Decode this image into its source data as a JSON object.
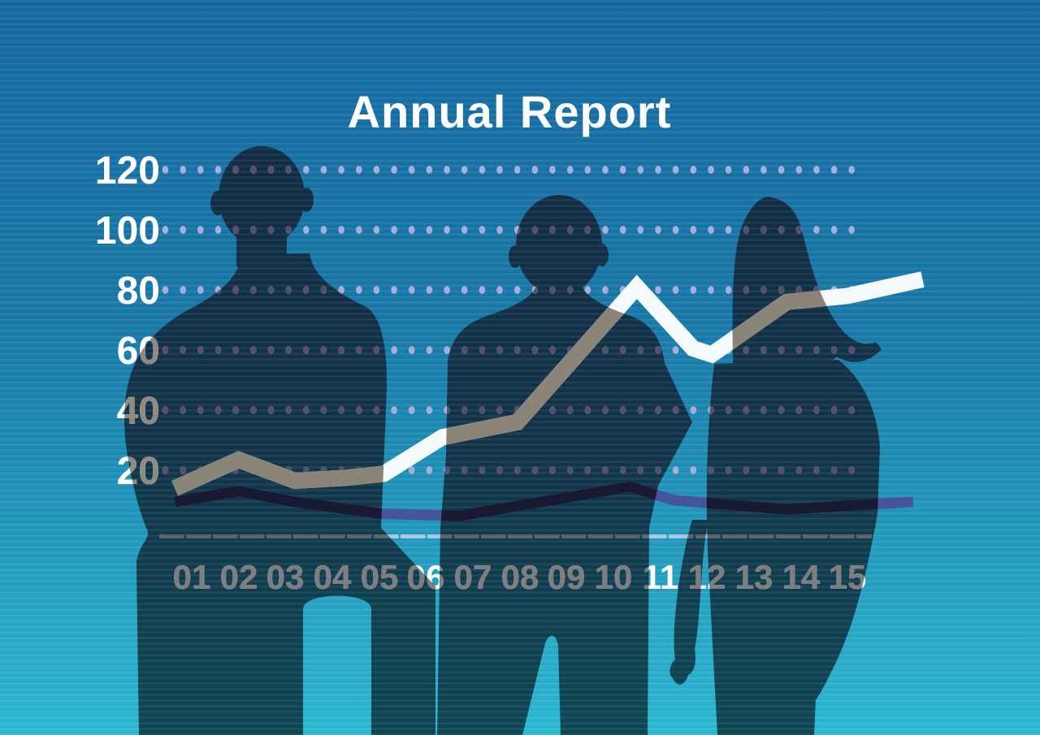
{
  "title": "Annual Report",
  "chart_data": {
    "type": "line",
    "title": "Annual Report",
    "x_labels": [
      "01",
      "02",
      "03",
      "04",
      "05",
      "06",
      "07",
      "08",
      "09",
      "10",
      "11",
      "12",
      "13",
      "14",
      "15"
    ],
    "y_ticks": [
      120,
      100,
      80,
      60,
      40,
      20
    ],
    "ylim": [
      0,
      130
    ],
    "grid": "dotted-horizontal-rows",
    "legend": "none",
    "series": [
      {
        "name": "rising-white-line",
        "approx_values_by_year": [
          14,
          23,
          17,
          18,
          19,
          31,
          36,
          43,
          55,
          72,
          79,
          60,
          66,
          75,
          78
        ],
        "points_x_year_y_value": [
          [
            0.64,
            14
          ],
          [
            2.0,
            23.5
          ],
          [
            3.2,
            16.5
          ],
          [
            4.3,
            17.5
          ],
          [
            5.1,
            18.8
          ],
          [
            6.35,
            31
          ],
          [
            7.95,
            36
          ],
          [
            10.5,
            81
          ],
          [
            11.7,
            60.5
          ],
          [
            12.1,
            58.5
          ],
          [
            13.7,
            76
          ],
          [
            15.0,
            78
          ],
          [
            16.6,
            83.5
          ]
        ],
        "thickness": 20
      },
      {
        "name": "flat-navy-line",
        "approx_values_by_year": [
          10,
          13,
          10,
          7,
          6,
          5,
          6,
          8,
          11,
          14,
          12,
          9,
          8,
          7,
          8
        ],
        "points_x_year_y_value": [
          [
            0.64,
            9.5
          ],
          [
            2.0,
            13
          ],
          [
            3.2,
            9.5
          ],
          [
            5.05,
            5.5
          ],
          [
            6.7,
            4.8
          ],
          [
            10.35,
            14.5
          ],
          [
            11.3,
            10
          ],
          [
            13.7,
            7
          ],
          [
            16.4,
            9.5
          ]
        ],
        "thickness": 13
      }
    ]
  },
  "figures": [
    {
      "name": "businessman-left",
      "description": "silhouette of a man seen from behind, hands folded"
    },
    {
      "name": "businessman-middle",
      "description": "silhouette of a man seen from behind, arms crossed"
    },
    {
      "name": "businesswoman-right",
      "description": "silhouette of a long-haired woman seen from behind"
    }
  ],
  "colors": {
    "title_color": "#ffffff",
    "background_stops": [
      "#1569a2",
      "#187aa8",
      "#2cb8d2"
    ],
    "silhouette_stops": [
      "#112b43",
      "#113349",
      "#0e4754"
    ],
    "palette_over_background": {
      "y_label": "#ffffff",
      "x_label": "#ffffff",
      "dot": "#a9aed8",
      "line_main": "#f5fafd",
      "line_secondary": "#46549b",
      "axis": "#a5c9e3"
    },
    "palette_over_silhouette": {
      "y_label": "#8f8a82",
      "x_label": "#7e7d80",
      "dot": "#56506e",
      "line_main": "#8b8478",
      "line_secondary": "#191a32",
      "axis": "#5e656b"
    }
  }
}
